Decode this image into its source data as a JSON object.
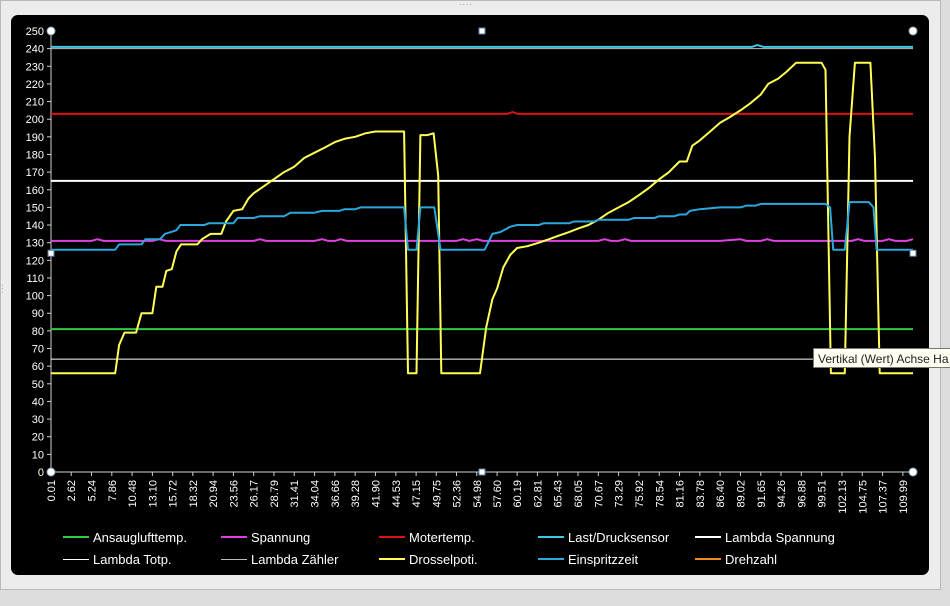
{
  "window": {
    "tooltip_text": "Vertikal (Wert) Achse Ha"
  },
  "chart_data": {
    "type": "line",
    "ylim": [
      0,
      250
    ],
    "y_ticks": [
      0,
      10,
      20,
      30,
      40,
      50,
      60,
      70,
      80,
      90,
      100,
      110,
      120,
      130,
      140,
      150,
      160,
      170,
      180,
      190,
      200,
      210,
      220,
      230,
      240,
      250
    ],
    "x_ticks": [
      "0.01",
      "2.62",
      "5.24",
      "7.86",
      "10.48",
      "13.10",
      "15.72",
      "18.32",
      "20.94",
      "23.56",
      "26.17",
      "28.79",
      "31.41",
      "34.04",
      "36.66",
      "39.28",
      "41.90",
      "44.53",
      "47.15",
      "49.75",
      "52.36",
      "54.98",
      "57.60",
      "60.19",
      "62.81",
      "65.43",
      "68.05",
      "70.67",
      "73.29",
      "75.92",
      "78.54",
      "81.16",
      "83.78",
      "86.40",
      "89.02",
      "91.65",
      "94.26",
      "96.88",
      "99.51",
      "102.13",
      "104.75",
      "107.37",
      "109.99"
    ],
    "grid": false,
    "legend_position": "bottom",
    "series": [
      {
        "name": "Ansauglufttemp.",
        "color": "#2ecc40",
        "points": [
          [
            0.01,
            81
          ],
          [
            111.3,
            81
          ]
        ]
      },
      {
        "name": "Spannung",
        "color": "#e040e0",
        "points": [
          [
            0.01,
            131
          ],
          [
            5.24,
            131
          ],
          [
            6.0,
            132
          ],
          [
            6.8,
            131
          ],
          [
            13.1,
            131
          ],
          [
            14.0,
            132
          ],
          [
            14.8,
            131
          ],
          [
            26.17,
            131
          ],
          [
            27.0,
            132
          ],
          [
            27.8,
            131
          ],
          [
            34.04,
            131
          ],
          [
            35.0,
            132
          ],
          [
            35.8,
            131
          ],
          [
            36.66,
            131
          ],
          [
            37.4,
            132
          ],
          [
            38.2,
            131
          ],
          [
            52.36,
            131
          ],
          [
            53.2,
            132
          ],
          [
            54.0,
            131
          ],
          [
            55.0,
            132
          ],
          [
            55.8,
            131
          ],
          [
            70.67,
            131
          ],
          [
            71.5,
            132
          ],
          [
            72.3,
            131
          ],
          [
            73.29,
            131
          ],
          [
            74.1,
            132
          ],
          [
            74.9,
            131
          ],
          [
            86.4,
            131
          ],
          [
            89.0,
            132
          ],
          [
            89.8,
            131
          ],
          [
            91.65,
            131
          ],
          [
            92.5,
            132
          ],
          [
            93.3,
            131
          ],
          [
            103.4,
            131
          ],
          [
            104.2,
            132
          ],
          [
            105.0,
            131
          ],
          [
            107.37,
            131
          ],
          [
            108.2,
            132
          ],
          [
            109.0,
            131
          ],
          [
            110.5,
            131
          ],
          [
            111.3,
            132
          ]
        ]
      },
      {
        "name": "Motertemp.",
        "color": "#dd1111",
        "points": [
          [
            0.01,
            203
          ],
          [
            58.9,
            203
          ],
          [
            59.6,
            204
          ],
          [
            60.3,
            203
          ],
          [
            111.3,
            203
          ]
        ]
      },
      {
        "name": "Last/Drucksensor",
        "color": "#40c8e8",
        "points": [
          [
            0.01,
            241
          ],
          [
            90.5,
            241
          ],
          [
            91.2,
            242
          ],
          [
            92.0,
            241
          ],
          [
            111.3,
            241
          ]
        ]
      },
      {
        "name": "Lambda Spannung",
        "color": "#ffffff",
        "points": [
          [
            0.01,
            165
          ],
          [
            111.3,
            165
          ]
        ]
      },
      {
        "name": "Lambda Totp.",
        "color": "#ffffff",
        "points": [
          [
            0.01,
            64
          ],
          [
            111.3,
            64
          ]
        ]
      },
      {
        "name": "Lambda Zähler",
        "color": "#bbbbbb",
        "points": [
          [
            0.01,
            240
          ],
          [
            111.3,
            240
          ]
        ]
      },
      {
        "name": "Drosselpoti.",
        "color": "#ffff55",
        "points": [
          [
            0.01,
            56
          ],
          [
            8.3,
            56
          ],
          [
            8.8,
            72
          ],
          [
            9.5,
            79
          ],
          [
            11.0,
            79
          ],
          [
            11.7,
            90
          ],
          [
            13.1,
            90
          ],
          [
            13.6,
            105
          ],
          [
            14.4,
            105
          ],
          [
            14.9,
            114
          ],
          [
            15.6,
            115
          ],
          [
            16.2,
            125
          ],
          [
            16.8,
            129
          ],
          [
            18.9,
            129
          ],
          [
            19.5,
            132
          ],
          [
            20.6,
            135
          ],
          [
            22.0,
            135
          ],
          [
            22.6,
            142
          ],
          [
            23.56,
            148
          ],
          [
            24.7,
            149
          ],
          [
            25.5,
            155
          ],
          [
            26.17,
            158
          ],
          [
            27.5,
            162
          ],
          [
            28.79,
            166
          ],
          [
            30.1,
            170
          ],
          [
            31.41,
            173
          ],
          [
            32.7,
            178
          ],
          [
            34.04,
            181
          ],
          [
            35.4,
            184
          ],
          [
            36.66,
            187
          ],
          [
            38.0,
            189
          ],
          [
            39.28,
            190
          ],
          [
            40.6,
            192
          ],
          [
            41.9,
            193
          ],
          [
            45.6,
            193
          ],
          [
            46.1,
            56
          ],
          [
            47.2,
            56
          ],
          [
            47.7,
            191
          ],
          [
            48.6,
            191
          ],
          [
            49.4,
            192
          ],
          [
            50.0,
            168
          ],
          [
            50.4,
            56
          ],
          [
            55.4,
            56
          ],
          [
            56.2,
            82
          ],
          [
            57.0,
            98
          ],
          [
            57.6,
            104
          ],
          [
            58.4,
            116
          ],
          [
            59.3,
            123
          ],
          [
            60.19,
            127
          ],
          [
            61.5,
            128
          ],
          [
            63.0,
            130
          ],
          [
            64.3,
            132
          ],
          [
            65.6,
            134
          ],
          [
            66.9,
            136
          ],
          [
            68.05,
            138
          ],
          [
            69.4,
            140
          ],
          [
            70.67,
            143
          ],
          [
            72.0,
            147
          ],
          [
            73.29,
            150
          ],
          [
            74.6,
            153
          ],
          [
            75.92,
            157
          ],
          [
            77.2,
            161
          ],
          [
            78.54,
            166
          ],
          [
            79.8,
            170
          ],
          [
            81.16,
            176
          ],
          [
            82.1,
            176
          ],
          [
            82.8,
            185
          ],
          [
            83.78,
            188
          ],
          [
            85.1,
            193
          ],
          [
            86.4,
            198
          ],
          [
            87.6,
            201
          ],
          [
            89.02,
            205
          ],
          [
            90.3,
            209
          ],
          [
            91.65,
            214
          ],
          [
            92.6,
            220
          ],
          [
            93.9,
            223
          ],
          [
            95.0,
            227
          ],
          [
            96.2,
            232
          ],
          [
            99.5,
            232
          ],
          [
            100.0,
            228
          ],
          [
            100.7,
            56
          ],
          [
            102.5,
            56
          ],
          [
            103.1,
            190
          ],
          [
            103.8,
            232
          ],
          [
            105.8,
            232
          ],
          [
            106.4,
            178
          ],
          [
            107.0,
            56
          ],
          [
            111.3,
            56
          ]
        ]
      },
      {
        "name": "Einspritzzeit",
        "color": "#2aa8dd",
        "points": [
          [
            0.01,
            126
          ],
          [
            8.3,
            126
          ],
          [
            8.8,
            129
          ],
          [
            11.7,
            129
          ],
          [
            12.2,
            132
          ],
          [
            14.1,
            132
          ],
          [
            14.7,
            135
          ],
          [
            16.2,
            137
          ],
          [
            16.7,
            140
          ],
          [
            19.8,
            140
          ],
          [
            20.4,
            141
          ],
          [
            23.56,
            141
          ],
          [
            24.1,
            144
          ],
          [
            26.17,
            144
          ],
          [
            27.0,
            145
          ],
          [
            30.1,
            145
          ],
          [
            30.9,
            147
          ],
          [
            34.04,
            147
          ],
          [
            35.0,
            148
          ],
          [
            37.2,
            148
          ],
          [
            37.9,
            149
          ],
          [
            39.28,
            149
          ],
          [
            40.0,
            150
          ],
          [
            45.6,
            150
          ],
          [
            46.1,
            126
          ],
          [
            47.2,
            126
          ],
          [
            47.7,
            150
          ],
          [
            49.5,
            150
          ],
          [
            50.3,
            126
          ],
          [
            56.0,
            126
          ],
          [
            57.0,
            135
          ],
          [
            58.0,
            136
          ],
          [
            59.3,
            139
          ],
          [
            60.19,
            140
          ],
          [
            63.0,
            140
          ],
          [
            63.6,
            141
          ],
          [
            66.9,
            141
          ],
          [
            67.5,
            142
          ],
          [
            70.1,
            142
          ],
          [
            70.67,
            143
          ],
          [
            74.6,
            143
          ],
          [
            75.3,
            144
          ],
          [
            77.9,
            144
          ],
          [
            78.54,
            145
          ],
          [
            80.5,
            145
          ],
          [
            81.16,
            146
          ],
          [
            82.0,
            146
          ],
          [
            82.5,
            148
          ],
          [
            83.78,
            149
          ],
          [
            86.4,
            150
          ],
          [
            89.02,
            150
          ],
          [
            89.8,
            151
          ],
          [
            91.0,
            151
          ],
          [
            91.65,
            152
          ],
          [
            100.0,
            152
          ],
          [
            100.6,
            150
          ],
          [
            101.0,
            126
          ],
          [
            102.5,
            126
          ],
          [
            103.1,
            153
          ],
          [
            105.6,
            153
          ],
          [
            106.2,
            150
          ],
          [
            106.6,
            126
          ],
          [
            111.3,
            126
          ]
        ]
      },
      {
        "name": "Drehzahl",
        "color": "#ee8822",
        "points": []
      }
    ]
  }
}
